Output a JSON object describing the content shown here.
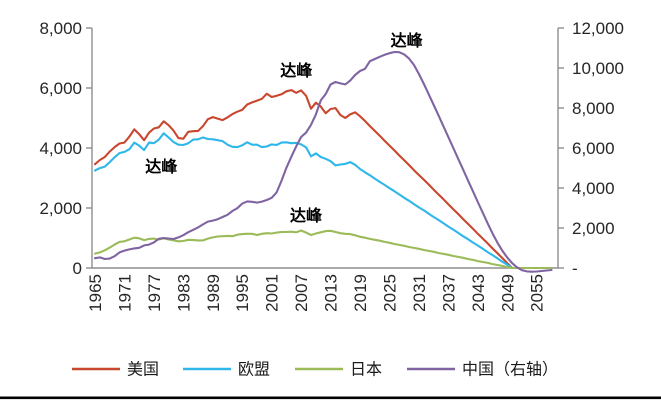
{
  "chart_data": {
    "type": "line",
    "title": "",
    "xlabel": "",
    "ylabel_left": "",
    "ylabel_right": "",
    "grid": false,
    "legend_position": "bottom",
    "x_years": [
      1965,
      1966,
      1967,
      1968,
      1969,
      1970,
      1971,
      1972,
      1973,
      1974,
      1975,
      1976,
      1977,
      1978,
      1979,
      1980,
      1981,
      1982,
      1983,
      1984,
      1985,
      1986,
      1987,
      1988,
      1989,
      1990,
      1991,
      1992,
      1993,
      1994,
      1995,
      1996,
      1997,
      1998,
      1999,
      2000,
      2001,
      2002,
      2003,
      2004,
      2005,
      2006,
      2007,
      2008,
      2009,
      2010,
      2011,
      2012,
      2013,
      2014,
      2015,
      2016,
      2017,
      2018,
      2019,
      2020,
      2021,
      2022,
      2023,
      2024,
      2025,
      2026,
      2027,
      2028,
      2029,
      2030,
      2031,
      2032,
      2033,
      2034,
      2035,
      2036,
      2037,
      2038,
      2039,
      2040,
      2041,
      2042,
      2043,
      2044,
      2045,
      2046,
      2047,
      2048,
      2049,
      2050,
      2051,
      2052,
      2053,
      2054,
      2055,
      2056,
      2057,
      2058
    ],
    "left_axis": {
      "min": 0,
      "max": 8000,
      "tick_step": 2000,
      "tick_labels": [
        "0",
        "2,000",
        "4,000",
        "6,000",
        "8,000"
      ]
    },
    "right_axis": {
      "min": 0,
      "max": 12000,
      "tick_step": 2000,
      "tick_labels": [
        "-",
        "2,000",
        "4,000",
        "6,000",
        "8,000",
        "10,000",
        "12,000"
      ]
    },
    "x_tick_labels": [
      "1965",
      "1971",
      "1977",
      "1983",
      "1989",
      "1995",
      "2001",
      "2007",
      "2013",
      "2019",
      "2025",
      "2031",
      "2037",
      "2043",
      "2049",
      "2055"
    ],
    "series": [
      {
        "key": "usa",
        "name": "美国",
        "axis": "left",
        "color": "#C9472E",
        "values": [
          3460,
          3600,
          3700,
          3880,
          4030,
          4150,
          4180,
          4380,
          4620,
          4460,
          4260,
          4510,
          4650,
          4690,
          4890,
          4760,
          4580,
          4330,
          4310,
          4540,
          4560,
          4570,
          4730,
          4960,
          5030,
          4980,
          4930,
          5020,
          5130,
          5210,
          5270,
          5450,
          5520,
          5580,
          5640,
          5810,
          5700,
          5740,
          5790,
          5890,
          5930,
          5840,
          5920,
          5740,
          5310,
          5510,
          5380,
          5160,
          5300,
          5330,
          5100,
          5000,
          5120,
          5190,
          5060,
          4900,
          4730,
          4570,
          4410,
          4240,
          4080,
          3920,
          3750,
          3590,
          3430,
          3260,
          3100,
          2940,
          2780,
          2610,
          2450,
          2290,
          2120,
          1960,
          1800,
          1630,
          1470,
          1310,
          1140,
          980,
          820,
          650,
          490,
          330,
          160,
          0,
          0,
          0,
          0,
          0,
          0,
          0,
          0,
          0
        ]
      },
      {
        "key": "eu",
        "name": "欧盟",
        "axis": "left",
        "color": "#2FB7EA",
        "values": [
          3250,
          3330,
          3380,
          3530,
          3690,
          3830,
          3870,
          3960,
          4180,
          4080,
          3930,
          4180,
          4160,
          4280,
          4490,
          4350,
          4200,
          4110,
          4100,
          4160,
          4280,
          4290,
          4350,
          4300,
          4290,
          4260,
          4230,
          4110,
          4040,
          4030,
          4090,
          4190,
          4110,
          4110,
          4030,
          4050,
          4120,
          4100,
          4180,
          4190,
          4160,
          4170,
          4120,
          4020,
          3720,
          3820,
          3700,
          3640,
          3560,
          3420,
          3450,
          3470,
          3530,
          3440,
          3300,
          3190,
          3090,
          2980,
          2870,
          2770,
          2660,
          2560,
          2450,
          2340,
          2240,
          2130,
          2020,
          1920,
          1810,
          1700,
          1600,
          1490,
          1380,
          1280,
          1170,
          1060,
          960,
          850,
          750,
          640,
          530,
          430,
          320,
          210,
          110,
          0,
          0,
          0,
          0,
          0,
          0,
          0,
          0,
          0
        ]
      },
      {
        "key": "japan",
        "name": "日本",
        "axis": "left",
        "color": "#9BBB59",
        "values": [
          480,
          520,
          590,
          680,
          780,
          870,
          890,
          950,
          1010,
          990,
          930,
          970,
          980,
          950,
          990,
          950,
          920,
          890,
          900,
          940,
          930,
          920,
          920,
          980,
          1020,
          1050,
          1060,
          1070,
          1060,
          1110,
          1130,
          1140,
          1140,
          1100,
          1140,
          1160,
          1150,
          1180,
          1200,
          1200,
          1210,
          1190,
          1250,
          1180,
          1100,
          1150,
          1190,
          1230,
          1240,
          1200,
          1160,
          1140,
          1130,
          1090,
          1040,
          1010,
          970,
          940,
          910,
          870,
          840,
          800,
          770,
          740,
          700,
          670,
          640,
          600,
          570,
          540,
          500,
          470,
          440,
          400,
          370,
          340,
          300,
          270,
          230,
          200,
          170,
          130,
          100,
          70,
          30,
          0,
          0,
          0,
          0,
          0,
          0,
          0,
          0,
          0
        ]
      },
      {
        "key": "china",
        "name": "中国（右轴）",
        "axis": "right",
        "color": "#8064A2",
        "values": [
          490,
          530,
          450,
          470,
          590,
          780,
          870,
          930,
          980,
          1010,
          1130,
          1170,
          1280,
          1460,
          1500,
          1470,
          1450,
          1530,
          1640,
          1790,
          1910,
          2030,
          2180,
          2320,
          2370,
          2440,
          2550,
          2660,
          2850,
          2990,
          3220,
          3330,
          3310,
          3270,
          3320,
          3400,
          3510,
          3780,
          4360,
          5010,
          5560,
          6080,
          6550,
          6770,
          7160,
          7680,
          8380,
          8700,
          9180,
          9300,
          9230,
          9180,
          9370,
          9650,
          9850,
          9960,
          10340,
          10450,
          10560,
          10660,
          10740,
          10800,
          10790,
          10680,
          10470,
          10150,
          9700,
          9200,
          8680,
          8150,
          7620,
          7080,
          6540,
          6000,
          5460,
          4920,
          4380,
          3840,
          3300,
          2760,
          2230,
          1720,
          1260,
          860,
          520,
          240,
          30,
          -110,
          -170,
          -185,
          -175,
          -150,
          -125,
          -100
        ]
      }
    ],
    "annotations": [
      {
        "text": "达峰",
        "for": "eu",
        "year": 1978.5,
        "value": 3400,
        "axis": "left"
      },
      {
        "text": "达峰",
        "for": "usa",
        "year": 2006,
        "value": 6600,
        "axis": "left"
      },
      {
        "text": "达峰",
        "for": "china",
        "year": 2028.5,
        "value": 11400,
        "axis": "right"
      },
      {
        "text": "达峰",
        "for": "japan",
        "year": 2008,
        "value": 1770,
        "axis": "left"
      }
    ]
  },
  "legend": {
    "items": [
      {
        "label": "美国",
        "color": "#C9472E"
      },
      {
        "label": "欧盟",
        "color": "#2FB7EA"
      },
      {
        "label": "日本",
        "color": "#9BBB59"
      },
      {
        "label": "中国（右轴）",
        "color": "#8064A2"
      }
    ]
  },
  "colors": {
    "axis_line": "#8E8E8E",
    "tick_text": "#262626",
    "bottom_rule": "#000000",
    "background": "#FFFFFF"
  }
}
